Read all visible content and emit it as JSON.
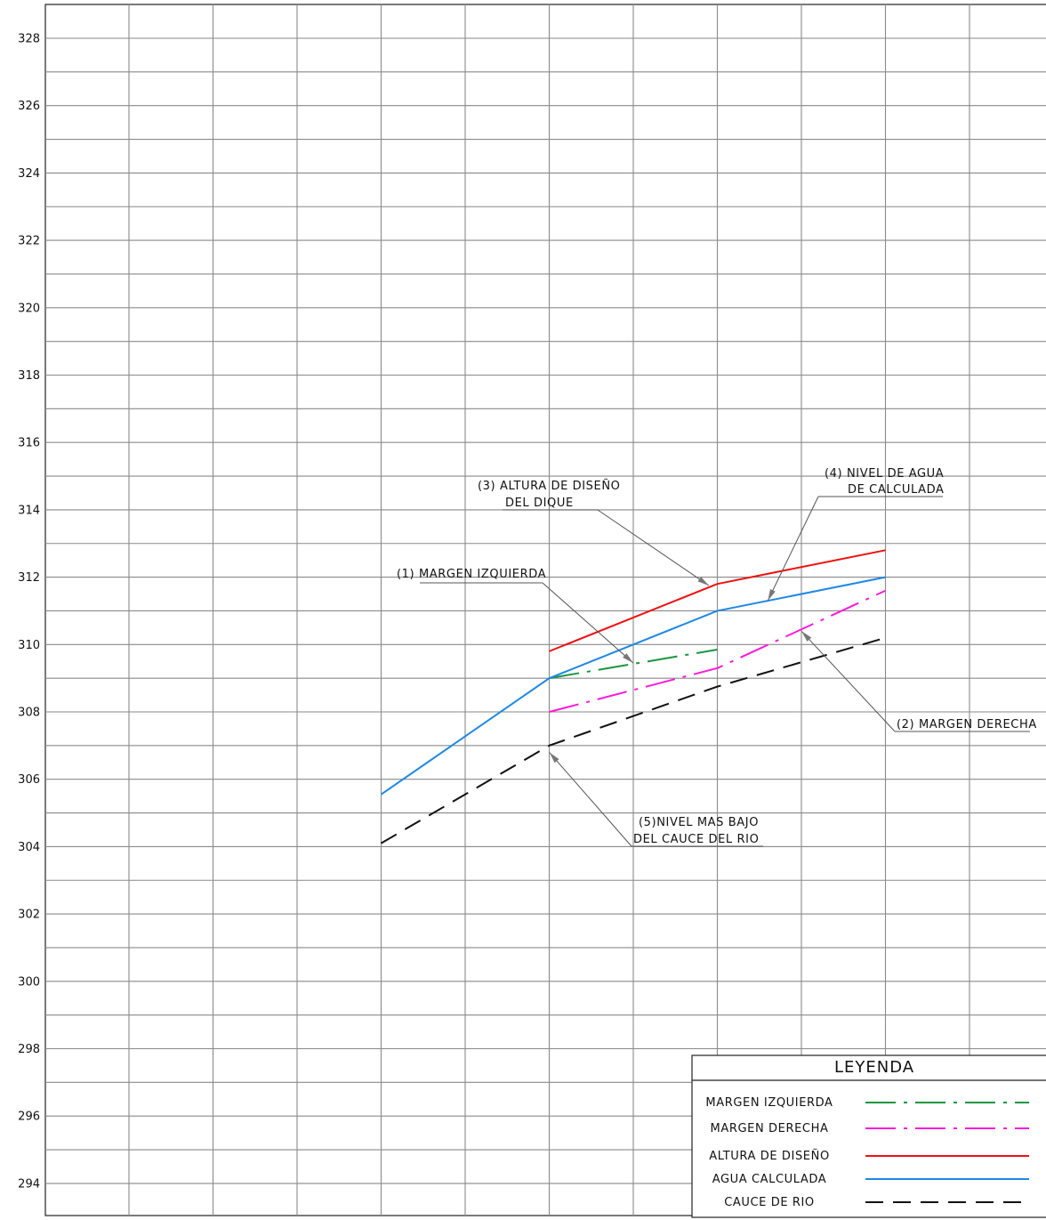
{
  "chart_data": {
    "type": "line",
    "title": "",
    "xlabel": "",
    "ylabel": "",
    "ylim": [
      293,
      329
    ],
    "y_ticks": [
      294,
      296,
      298,
      300,
      302,
      304,
      306,
      308,
      310,
      312,
      314,
      316,
      318,
      320,
      322,
      324,
      326,
      328
    ],
    "xlim": [
      0,
      12
    ],
    "grid": true,
    "series": [
      {
        "key": "margen_izquierda",
        "name": "MARGEN IZQUIERDA",
        "color": "#1a9641",
        "dash": "dashdot",
        "x": [
          6,
          8
        ],
        "y": [
          309.0,
          309.85
        ]
      },
      {
        "key": "margen_derecha",
        "name": "MARGEN DERECHA",
        "color": "#ff1ad9",
        "dash": "dashdot",
        "x": [
          6,
          8,
          10
        ],
        "y": [
          308.0,
          309.3,
          311.6
        ]
      },
      {
        "key": "altura_diseno",
        "name": "ALTURA DE DISEÑO",
        "color": "#ee1111",
        "dash": "solid",
        "x": [
          6,
          8,
          10
        ],
        "y": [
          309.8,
          311.8,
          312.8
        ]
      },
      {
        "key": "agua_calculada",
        "name": "AGUA CALCULADA",
        "color": "#1e88e5",
        "dash": "solid",
        "x": [
          4,
          6,
          8,
          10
        ],
        "y": [
          305.55,
          309.0,
          311.0,
          312.0
        ]
      },
      {
        "key": "cauce_rio",
        "name": "CAUCE DE RIO",
        "color": "#111111",
        "dash": "dashed",
        "x": [
          4,
          6,
          8,
          10
        ],
        "y": [
          304.1,
          307.0,
          308.75,
          310.2
        ]
      }
    ],
    "annotations": [
      {
        "key": "a1",
        "lines": [
          "(1)  MARGEN  IZQUIERDA"
        ],
        "target_series": "margen_izquierda",
        "target": [
          7.0,
          309.45
        ]
      },
      {
        "key": "a2",
        "lines": [
          "(2) MARGEN  DERECHA"
        ],
        "target_series": "margen_derecha",
        "target": [
          9.0,
          310.4
        ]
      },
      {
        "key": "a3",
        "lines": [
          "(3)   ALTURA  DE  DISEÑO",
          "DEL  DIQUE"
        ],
        "target_series": "altura_diseno",
        "target": [
          7.9,
          311.75
        ]
      },
      {
        "key": "a4",
        "lines": [
          "(4)  NIVEL  DE  AGUA",
          "DE  CALCULADA"
        ],
        "target_series": "agua_calculada",
        "target": [
          8.6,
          311.3
        ]
      },
      {
        "key": "a5",
        "lines": [
          "(5)NIVEL  MAS  BAJO",
          "DEL  CAUCE  DEL  RIO"
        ],
        "target_series": "cauce_rio",
        "target": [
          6.0,
          306.8
        ]
      }
    ],
    "legend": {
      "title": "LEYENDA",
      "placement": "bottom-right",
      "items": [
        "MARGEN  IZQUIERDA",
        "MARGEN  DERECHA",
        "ALTURA  DE  DISEÑO",
        "AGUA  CALCULADA",
        "CAUCE  DE  RIO"
      ]
    }
  }
}
